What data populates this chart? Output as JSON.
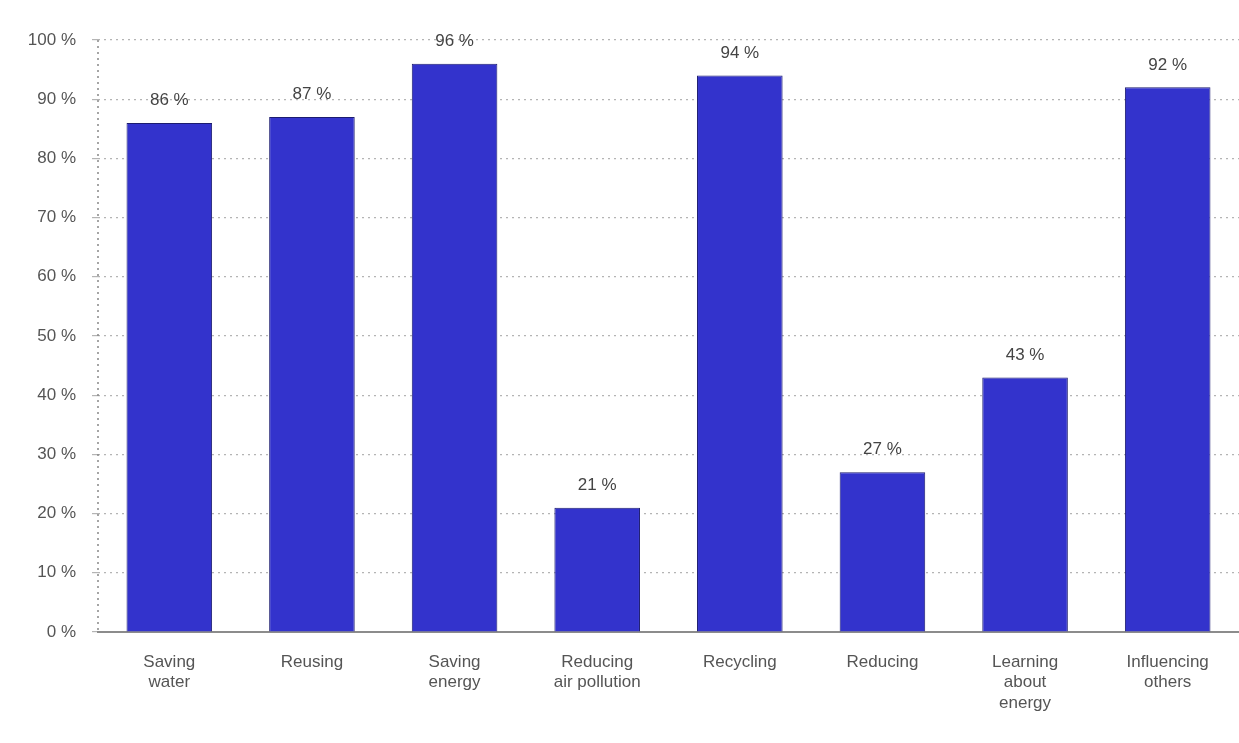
{
  "chart_data": {
    "type": "bar",
    "categories": [
      "Saving water",
      "Reusing",
      "Saving energy",
      "Reducing air pollution",
      "Recycling",
      "Reducing",
      "Learning about energy",
      "Influencing others"
    ],
    "values": [
      86,
      87,
      96,
      21,
      94,
      27,
      43,
      92
    ],
    "value_labels": [
      "86 %",
      "87 %",
      "96 %",
      "21 %",
      "94 %",
      "27 %",
      "43 %",
      "92 %"
    ],
    "color": "#3333cc",
    "ylim": [
      0,
      100
    ],
    "yticks": [
      {
        "value": 0,
        "label": "0 %"
      },
      {
        "value": 10,
        "label": "10 %"
      },
      {
        "value": 20,
        "label": "20 %"
      },
      {
        "value": 30,
        "label": "30 %"
      },
      {
        "value": 40,
        "label": "40 %"
      },
      {
        "value": 50,
        "label": "50 %"
      },
      {
        "value": 60,
        "label": "60 %"
      },
      {
        "value": 70,
        "label": "70 %"
      },
      {
        "value": 80,
        "label": "80 %"
      },
      {
        "value": 90,
        "label": "90 %"
      },
      {
        "value": 100,
        "label": "100 %"
      }
    ],
    "grid": "y"
  }
}
